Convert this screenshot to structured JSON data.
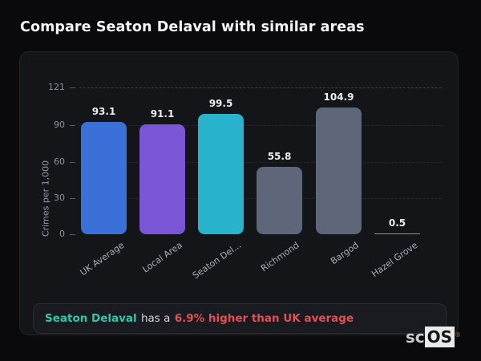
{
  "page": {
    "title": "Compare Seaton Delaval with similar areas"
  },
  "chart_data": {
    "type": "bar",
    "title": "Compare Seaton Delaval with similar areas",
    "categories": [
      "UK Average",
      "Local Area",
      "Seaton Delaval",
      "Richmond",
      "Bargod",
      "Hazel Grove"
    ],
    "x_display_labels": [
      "UK Average",
      "Local Area",
      "Seaton Del...",
      "Richmond",
      "Bargod",
      "Hazel Grove"
    ],
    "values": [
      93.1,
      91.1,
      99.5,
      55.8,
      104.9,
      0.5
    ],
    "value_labels": [
      "93.1",
      "91.1",
      "99.5",
      "55.8",
      "104.9",
      "0.5"
    ],
    "bar_colors": [
      "#3a70d8",
      "#7a55d6",
      "#28b4cd",
      "#5d6779",
      "#5d6779",
      "#8d96a4"
    ],
    "xlabel": "",
    "ylabel": "Crimes per 1,000",
    "yticks": [
      0,
      30,
      60,
      90,
      121
    ],
    "ylim": [
      0,
      121
    ],
    "grid": "horizontal-dashed",
    "legend": "none"
  },
  "summary": {
    "area": "Seaton Delaval",
    "middle": " has a ",
    "stat": "6.9% higher than UK average",
    "area_color": "#2ec9ac",
    "stat_color": "#e05252"
  },
  "logo": {
    "prefix": "sc",
    "suffix": "OS",
    "registered": "®"
  }
}
